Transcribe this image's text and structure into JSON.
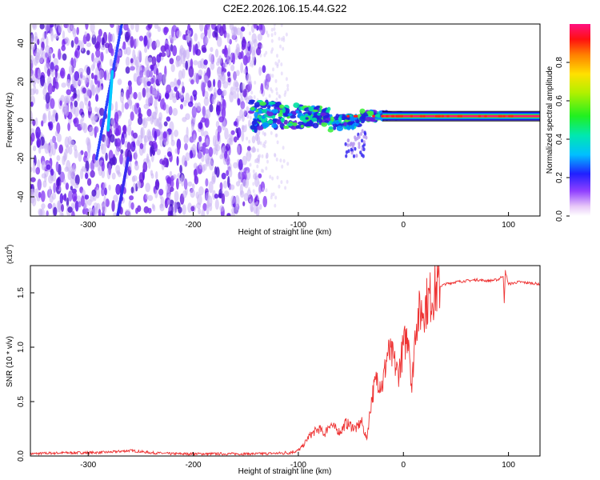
{
  "title": "C2E2.2026.106.15.44.G22",
  "colors": {
    "snr_line": "#ee3333",
    "frame": "#000000",
    "spectrogram_main": "#6a1ee0",
    "spectrogram_light": "#c8b0f4",
    "background": "#ffffff"
  },
  "chart_data": [
    {
      "type": "heatmap",
      "name": "spectrogram",
      "title": "C2E2.2026.106.15.44.G22",
      "xlabel": "Height of straight line (km)",
      "ylabel": "Frequency (Hz)",
      "xlim": [
        -355,
        130
      ],
      "ylim": [
        -50,
        50
      ],
      "xticks": [
        -300,
        -200,
        -100,
        0,
        100
      ],
      "xtick_labels": [
        "-300",
        "-200",
        "-100",
        "0",
        "100"
      ],
      "yticks": [
        -40,
        -20,
        0,
        20,
        40
      ],
      "ytick_labels": [
        "-40",
        "-20",
        "0",
        "20",
        "40"
      ],
      "grid": false,
      "colorbar": {
        "label": "Normalized spectral amplitude",
        "range": [
          0,
          1
        ],
        "ticks": [
          0,
          0.2,
          0.4,
          0.6,
          0.8
        ],
        "tick_labels": [
          "0.0",
          "0.2",
          "0.4",
          "0.6",
          "0.8"
        ]
      }
    },
    {
      "type": "line",
      "name": "snr",
      "xlabel": "Height of straight line (km)",
      "ylabel": "SNR (10 * v/v)",
      "y_multiplier": "(x10",
      "y_multiplier_exp": "4",
      "y_multiplier_close": ")",
      "xlim": [
        -355,
        130
      ],
      "ylim": [
        0,
        1.75
      ],
      "xticks": [
        -300,
        -200,
        -100,
        0,
        100
      ],
      "xtick_labels": [
        "-300",
        "-200",
        "-100",
        "0",
        "100"
      ],
      "yticks": [
        0,
        0.5,
        1.0,
        1.5
      ],
      "ytick_labels": [
        "0.0",
        "0.5",
        "1.0",
        "1.5"
      ],
      "grid": false,
      "series": [
        {
          "name": "SNR",
          "color": "#ee3333",
          "x": [
            -355,
            -340,
            -320,
            -300,
            -280,
            -260,
            -250,
            -240,
            -220,
            -200,
            -180,
            -160,
            -140,
            -120,
            -110,
            -100,
            -95,
            -90,
            -85,
            -80,
            -75,
            -70,
            -65,
            -60,
            -55,
            -50,
            -45,
            -40,
            -35,
            -30,
            -25,
            -20,
            -15,
            -10,
            -5,
            0,
            5,
            8,
            10,
            12,
            15,
            20,
            25,
            30,
            35,
            40,
            45,
            50,
            60,
            70,
            80,
            90,
            95,
            96,
            97,
            100,
            110,
            120,
            130
          ],
          "values": [
            0.02,
            0.025,
            0.03,
            0.03,
            0.035,
            0.05,
            0.04,
            0.03,
            0.02,
            0.02,
            0.02,
            0.02,
            0.02,
            0.025,
            0.03,
            0.05,
            0.1,
            0.18,
            0.22,
            0.25,
            0.2,
            0.3,
            0.25,
            0.22,
            0.3,
            0.28,
            0.25,
            0.32,
            0.15,
            0.55,
            0.72,
            0.65,
            0.95,
            0.9,
            0.75,
            1.0,
            1.15,
            0.6,
            0.95,
            1.25,
            1.3,
            1.38,
            1.45,
            1.52,
            1.56,
            1.58,
            1.59,
            1.6,
            1.61,
            1.62,
            1.61,
            1.62,
            1.66,
            1.4,
            1.7,
            1.58,
            1.6,
            1.59,
            1.58
          ]
        }
      ]
    }
  ]
}
